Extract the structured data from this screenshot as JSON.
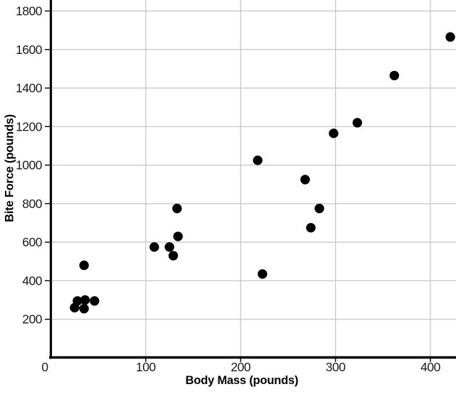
{
  "chart_data": {
    "type": "scatter",
    "title": "",
    "xlabel": "Body Mass (pounds)",
    "ylabel": "Bite Force (pounds)",
    "x_ticks": [
      0,
      100,
      200,
      300,
      400
    ],
    "y_ticks": [
      200,
      400,
      600,
      800,
      1000,
      1200,
      1400,
      1600,
      1800
    ],
    "xlim": [
      0,
      427
    ],
    "ylim": [
      0,
      1857
    ],
    "grid": true,
    "legend": "none",
    "points": [
      {
        "x": 25,
        "y": 260
      },
      {
        "x": 28,
        "y": 295
      },
      {
        "x": 35,
        "y": 255
      },
      {
        "x": 36,
        "y": 300
      },
      {
        "x": 46,
        "y": 295
      },
      {
        "x": 35,
        "y": 480
      },
      {
        "x": 109,
        "y": 575
      },
      {
        "x": 125,
        "y": 575
      },
      {
        "x": 129,
        "y": 530
      },
      {
        "x": 133,
        "y": 775
      },
      {
        "x": 134,
        "y": 630
      },
      {
        "x": 218,
        "y": 1025
      },
      {
        "x": 223,
        "y": 435
      },
      {
        "x": 268,
        "y": 925
      },
      {
        "x": 274,
        "y": 675
      },
      {
        "x": 283,
        "y": 775
      },
      {
        "x": 298,
        "y": 1165
      },
      {
        "x": 323,
        "y": 1220
      },
      {
        "x": 362,
        "y": 1465
      },
      {
        "x": 421,
        "y": 1665
      }
    ],
    "colors": {
      "point": "#000000",
      "grid": "#c4c4c4",
      "axis": "#000000",
      "tick_label": "#1a1a1a"
    }
  }
}
